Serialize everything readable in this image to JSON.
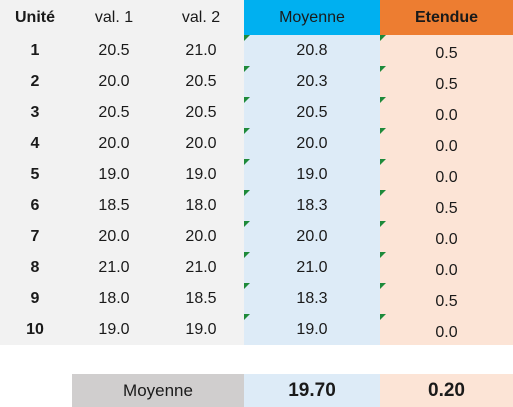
{
  "header": {
    "unit": "Unité",
    "val1": "val. 1",
    "val2": "val. 2",
    "mean": "Moyenne",
    "range": "Etendue"
  },
  "rows": [
    {
      "unit": "1",
      "val1": "20.5",
      "val2": "21.0",
      "mean": "20.8",
      "range": "0.5"
    },
    {
      "unit": "2",
      "val1": "20.0",
      "val2": "20.5",
      "mean": "20.3",
      "range": "0.5"
    },
    {
      "unit": "3",
      "val1": "20.5",
      "val2": "20.5",
      "mean": "20.5",
      "range": "0.0"
    },
    {
      "unit": "4",
      "val1": "20.0",
      "val2": "20.0",
      "mean": "20.0",
      "range": "0.0"
    },
    {
      "unit": "5",
      "val1": "19.0",
      "val2": "19.0",
      "mean": "19.0",
      "range": "0.0"
    },
    {
      "unit": "6",
      "val1": "18.5",
      "val2": "18.0",
      "mean": "18.3",
      "range": "0.5"
    },
    {
      "unit": "7",
      "val1": "20.0",
      "val2": "20.0",
      "mean": "20.0",
      "range": "0.0"
    },
    {
      "unit": "8",
      "val1": "21.0",
      "val2": "21.0",
      "mean": "21.0",
      "range": "0.0"
    },
    {
      "unit": "9",
      "val1": "18.0",
      "val2": "18.5",
      "mean": "18.3",
      "range": "0.5"
    },
    {
      "unit": "10",
      "val1": "19.0",
      "val2": "19.0",
      "mean": "19.0",
      "range": "0.0"
    }
  ],
  "summary": {
    "label": "Moyenne",
    "mean": "19.70",
    "range": "0.20"
  },
  "colors": {
    "mean_header": "#00b0f0",
    "range_header": "#ed7d31",
    "mean_column": "#ddebf7",
    "range_column": "#fce4d6",
    "data_column": "#f2f2f2",
    "summary_label": "#d0cece"
  }
}
